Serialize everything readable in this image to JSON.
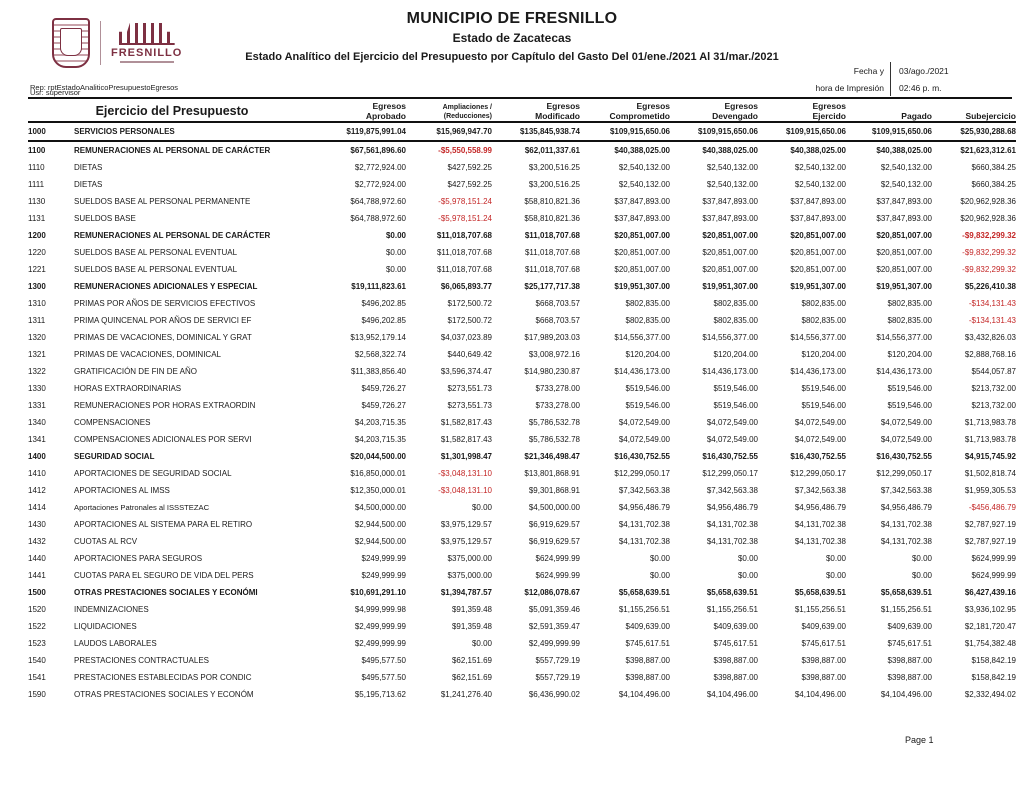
{
  "page": {
    "accent_red": "#c42727",
    "logo_color": "#7d3042"
  },
  "header": {
    "municipality": "MUNICIPIO DE FRESNILLO",
    "state": "Estado de Zacatecas",
    "report_title": "Estado Analítico del Ejercicio del Presupuesto por Capítulo del Gasto Del 01/ene./2021 Al 31/mar./2021",
    "date_label": "Fecha y",
    "date_value": "03/ago./2021",
    "time_label": "hora de Impresión",
    "time_value": "02:46 p. m.",
    "rep_line": "Rep: rptEstadoAnaliticoPresupuestoEgresos",
    "usr_line": "Usr: supervisor",
    "logo_text": "FRESNILLO"
  },
  "table": {
    "left_header": "Ejercicio del Presupuesto",
    "columns": [
      {
        "l1": "Egresos",
        "l2": "Aprobado",
        "small": false
      },
      {
        "l1": "Ampliaciones /",
        "l2": "(Reducciones)",
        "small": true
      },
      {
        "l1": "Egresos",
        "l2": "Modificado",
        "small": false
      },
      {
        "l1": "Egresos",
        "l2": "Comprometido",
        "small": false
      },
      {
        "l1": "Egresos",
        "l2": "Devengado",
        "small": false
      },
      {
        "l1": "Egresos",
        "l2": "Ejercido",
        "small": false
      },
      {
        "l1": "",
        "l2": "Pagado",
        "small": false
      },
      {
        "l1": "",
        "l2": "Subejercicio",
        "small": false
      }
    ],
    "rows": [
      {
        "c": "1000",
        "l": "SERVICIOS PERSONALES",
        "b": 1,
        "g": 1,
        "v": [
          "$119,875,991.04",
          "$15,969,947.70",
          "$135,845,938.74",
          "$109,915,650.06",
          "$109,915,650.06",
          "$109,915,650.06",
          "$109,915,650.06",
          "$25,930,288.68"
        ]
      },
      {
        "c": "1100",
        "l": "REMUNERACIONES AL PERSONAL DE CARÁCTER",
        "b": 1,
        "v": [
          "$67,561,896.60",
          "-$5,550,558.99",
          "$62,011,337.61",
          "$40,388,025.00",
          "$40,388,025.00",
          "$40,388,025.00",
          "$40,388,025.00",
          "$21,623,312.61"
        ]
      },
      {
        "c": "1110",
        "l": "DIETAS",
        "b": 0,
        "v": [
          "$2,772,924.00",
          "$427,592.25",
          "$3,200,516.25",
          "$2,540,132.00",
          "$2,540,132.00",
          "$2,540,132.00",
          "$2,540,132.00",
          "$660,384.25"
        ]
      },
      {
        "c": "1111",
        "l": "DIETAS",
        "b": 0,
        "v": [
          "$2,772,924.00",
          "$427,592.25",
          "$3,200,516.25",
          "$2,540,132.00",
          "$2,540,132.00",
          "$2,540,132.00",
          "$2,540,132.00",
          "$660,384.25"
        ]
      },
      {
        "c": "1130",
        "l": "SUELDOS BASE AL PERSONAL PERMANENTE",
        "b": 0,
        "v": [
          "$64,788,972.60",
          "-$5,978,151.24",
          "$58,810,821.36",
          "$37,847,893.00",
          "$37,847,893.00",
          "$37,847,893.00",
          "$37,847,893.00",
          "$20,962,928.36"
        ]
      },
      {
        "c": "1131",
        "l": "SUELDOS BASE",
        "b": 0,
        "v": [
          "$64,788,972.60",
          "-$5,978,151.24",
          "$58,810,821.36",
          "$37,847,893.00",
          "$37,847,893.00",
          "$37,847,893.00",
          "$37,847,893.00",
          "$20,962,928.36"
        ]
      },
      {
        "c": "1200",
        "l": "REMUNERACIONES AL PERSONAL DE CARÁCTER",
        "b": 1,
        "v": [
          "$0.00",
          "$11,018,707.68",
          "$11,018,707.68",
          "$20,851,007.00",
          "$20,851,007.00",
          "$20,851,007.00",
          "$20,851,007.00",
          "-$9,832,299.32"
        ]
      },
      {
        "c": "1220",
        "l": "SUELDOS BASE AL PERSONAL EVENTUAL",
        "b": 0,
        "v": [
          "$0.00",
          "$11,018,707.68",
          "$11,018,707.68",
          "$20,851,007.00",
          "$20,851,007.00",
          "$20,851,007.00",
          "$20,851,007.00",
          "-$9,832,299.32"
        ]
      },
      {
        "c": "1221",
        "l": "SUELDOS BASE AL PERSONAL EVENTUAL",
        "b": 0,
        "v": [
          "$0.00",
          "$11,018,707.68",
          "$11,018,707.68",
          "$20,851,007.00",
          "$20,851,007.00",
          "$20,851,007.00",
          "$20,851,007.00",
          "-$9,832,299.32"
        ]
      },
      {
        "c": "1300",
        "l": "REMUNERACIONES ADICIONALES Y ESPECIAL",
        "b": 1,
        "v": [
          "$19,111,823.61",
          "$6,065,893.77",
          "$25,177,717.38",
          "$19,951,307.00",
          "$19,951,307.00",
          "$19,951,307.00",
          "$19,951,307.00",
          "$5,226,410.38"
        ]
      },
      {
        "c": "1310",
        "l": "PRIMAS POR AÑOS DE SERVICIOS EFECTIVOS",
        "b": 0,
        "v": [
          "$496,202.85",
          "$172,500.72",
          "$668,703.57",
          "$802,835.00",
          "$802,835.00",
          "$802,835.00",
          "$802,835.00",
          "-$134,131.43"
        ]
      },
      {
        "c": "1311",
        "l": "PRIMA QUINCENAL POR AÑOS DE SERVICI EF",
        "b": 0,
        "v": [
          "$496,202.85",
          "$172,500.72",
          "$668,703.57",
          "$802,835.00",
          "$802,835.00",
          "$802,835.00",
          "$802,835.00",
          "-$134,131.43"
        ]
      },
      {
        "c": "1320",
        "l": "PRIMAS DE VACACIONES, DOMINICAL Y GRAT",
        "b": 0,
        "v": [
          "$13,952,179.14",
          "$4,037,023.89",
          "$17,989,203.03",
          "$14,556,377.00",
          "$14,556,377.00",
          "$14,556,377.00",
          "$14,556,377.00",
          "$3,432,826.03"
        ]
      },
      {
        "c": "1321",
        "l": "PRIMAS DE VACACIONES, DOMINICAL",
        "b": 0,
        "v": [
          "$2,568,322.74",
          "$440,649.42",
          "$3,008,972.16",
          "$120,204.00",
          "$120,204.00",
          "$120,204.00",
          "$120,204.00",
          "$2,888,768.16"
        ]
      },
      {
        "c": "1322",
        "l": "GRATIFICACIÓN DE FIN DE AÑO",
        "b": 0,
        "v": [
          "$11,383,856.40",
          "$3,596,374.47",
          "$14,980,230.87",
          "$14,436,173.00",
          "$14,436,173.00",
          "$14,436,173.00",
          "$14,436,173.00",
          "$544,057.87"
        ]
      },
      {
        "c": "1330",
        "l": "HORAS EXTRAORDINARIAS",
        "b": 0,
        "v": [
          "$459,726.27",
          "$273,551.73",
          "$733,278.00",
          "$519,546.00",
          "$519,546.00",
          "$519,546.00",
          "$519,546.00",
          "$213,732.00"
        ]
      },
      {
        "c": "1331",
        "l": "REMUNERACIONES POR HORAS EXTRAORDIN",
        "b": 0,
        "v": [
          "$459,726.27",
          "$273,551.73",
          "$733,278.00",
          "$519,546.00",
          "$519,546.00",
          "$519,546.00",
          "$519,546.00",
          "$213,732.00"
        ]
      },
      {
        "c": "1340",
        "l": "COMPENSACIONES",
        "b": 0,
        "v": [
          "$4,203,715.35",
          "$1,582,817.43",
          "$5,786,532.78",
          "$4,072,549.00",
          "$4,072,549.00",
          "$4,072,549.00",
          "$4,072,549.00",
          "$1,713,983.78"
        ]
      },
      {
        "c": "1341",
        "l": "COMPENSACIONES ADICIONALES POR SERVI",
        "b": 0,
        "v": [
          "$4,203,715.35",
          "$1,582,817.43",
          "$5,786,532.78",
          "$4,072,549.00",
          "$4,072,549.00",
          "$4,072,549.00",
          "$4,072,549.00",
          "$1,713,983.78"
        ]
      },
      {
        "c": "1400",
        "l": "SEGURIDAD SOCIAL",
        "b": 1,
        "v": [
          "$20,044,500.00",
          "$1,301,998.47",
          "$21,346,498.47",
          "$16,430,752.55",
          "$16,430,752.55",
          "$16,430,752.55",
          "$16,430,752.55",
          "$4,915,745.92"
        ]
      },
      {
        "c": "1410",
        "l": "APORTACIONES DE SEGURIDAD SOCIAL",
        "b": 0,
        "v": [
          "$16,850,000.01",
          "-$3,048,131.10",
          "$13,801,868.91",
          "$12,299,050.17",
          "$12,299,050.17",
          "$12,299,050.17",
          "$12,299,050.17",
          "$1,502,818.74"
        ]
      },
      {
        "c": "1412",
        "l": "APORTACIONES AL IMSS",
        "b": 0,
        "v": [
          "$12,350,000.01",
          "-$3,048,131.10",
          "$9,301,868.91",
          "$7,342,563.38",
          "$7,342,563.38",
          "$7,342,563.38",
          "$7,342,563.38",
          "$1,959,305.53"
        ]
      },
      {
        "c": "1414",
        "l": "Aportaciones Patronales al ISSSTEZAC",
        "b": 0,
        "mc": 1,
        "v": [
          "$4,500,000.00",
          "$0.00",
          "$4,500,000.00",
          "$4,956,486.79",
          "$4,956,486.79",
          "$4,956,486.79",
          "$4,956,486.79",
          "-$456,486.79"
        ]
      },
      {
        "c": "1430",
        "l": "APORTACIONES AL SISTEMA PARA EL RETIRO",
        "b": 0,
        "v": [
          "$2,944,500.00",
          "$3,975,129.57",
          "$6,919,629.57",
          "$4,131,702.38",
          "$4,131,702.38",
          "$4,131,702.38",
          "$4,131,702.38",
          "$2,787,927.19"
        ]
      },
      {
        "c": "1432",
        "l": "CUOTAS AL RCV",
        "b": 0,
        "v": [
          "$2,944,500.00",
          "$3,975,129.57",
          "$6,919,629.57",
          "$4,131,702.38",
          "$4,131,702.38",
          "$4,131,702.38",
          "$4,131,702.38",
          "$2,787,927.19"
        ]
      },
      {
        "c": "1440",
        "l": "APORTACIONES PARA SEGUROS",
        "b": 0,
        "v": [
          "$249,999.99",
          "$375,000.00",
          "$624,999.99",
          "$0.00",
          "$0.00",
          "$0.00",
          "$0.00",
          "$624,999.99"
        ]
      },
      {
        "c": "1441",
        "l": "CUOTAS PARA EL SEGURO DE VIDA DEL PERS",
        "b": 0,
        "v": [
          "$249,999.99",
          "$375,000.00",
          "$624,999.99",
          "$0.00",
          "$0.00",
          "$0.00",
          "$0.00",
          "$624,999.99"
        ]
      },
      {
        "c": "1500",
        "l": "OTRAS PRESTACIONES SOCIALES Y ECONÓMI",
        "b": 1,
        "v": [
          "$10,691,291.10",
          "$1,394,787.57",
          "$12,086,078.67",
          "$5,658,639.51",
          "$5,658,639.51",
          "$5,658,639.51",
          "$5,658,639.51",
          "$6,427,439.16"
        ]
      },
      {
        "c": "1520",
        "l": "INDEMNIZACIONES",
        "b": 0,
        "v": [
          "$4,999,999.98",
          "$91,359.48",
          "$5,091,359.46",
          "$1,155,256.51",
          "$1,155,256.51",
          "$1,155,256.51",
          "$1,155,256.51",
          "$3,936,102.95"
        ]
      },
      {
        "c": "1522",
        "l": "LIQUIDACIONES",
        "b": 0,
        "v": [
          "$2,499,999.99",
          "$91,359.48",
          "$2,591,359.47",
          "$409,639.00",
          "$409,639.00",
          "$409,639.00",
          "$409,639.00",
          "$2,181,720.47"
        ]
      },
      {
        "c": "1523",
        "l": "LAUDOS LABORALES",
        "b": 0,
        "v": [
          "$2,499,999.99",
          "$0.00",
          "$2,499,999.99",
          "$745,617.51",
          "$745,617.51",
          "$745,617.51",
          "$745,617.51",
          "$1,754,382.48"
        ]
      },
      {
        "c": "1540",
        "l": "PRESTACIONES CONTRACTUALES",
        "b": 0,
        "v": [
          "$495,577.50",
          "$62,151.69",
          "$557,729.19",
          "$398,887.00",
          "$398,887.00",
          "$398,887.00",
          "$398,887.00",
          "$158,842.19"
        ]
      },
      {
        "c": "1541",
        "l": "PRESTACIONES ESTABLECIDAS POR CONDIC",
        "b": 0,
        "v": [
          "$495,577.50",
          "$62,151.69",
          "$557,729.19",
          "$398,887.00",
          "$398,887.00",
          "$398,887.00",
          "$398,887.00",
          "$158,842.19"
        ]
      },
      {
        "c": "1590",
        "l": "OTRAS PRESTACIONES SOCIALES Y ECONÓM",
        "b": 0,
        "v": [
          "$5,195,713.62",
          "$1,241,276.40",
          "$6,436,990.02",
          "$4,104,496.00",
          "$4,104,496.00",
          "$4,104,496.00",
          "$4,104,496.00",
          "$2,332,494.02"
        ]
      }
    ]
  },
  "footer": {
    "page": "Page 1"
  }
}
